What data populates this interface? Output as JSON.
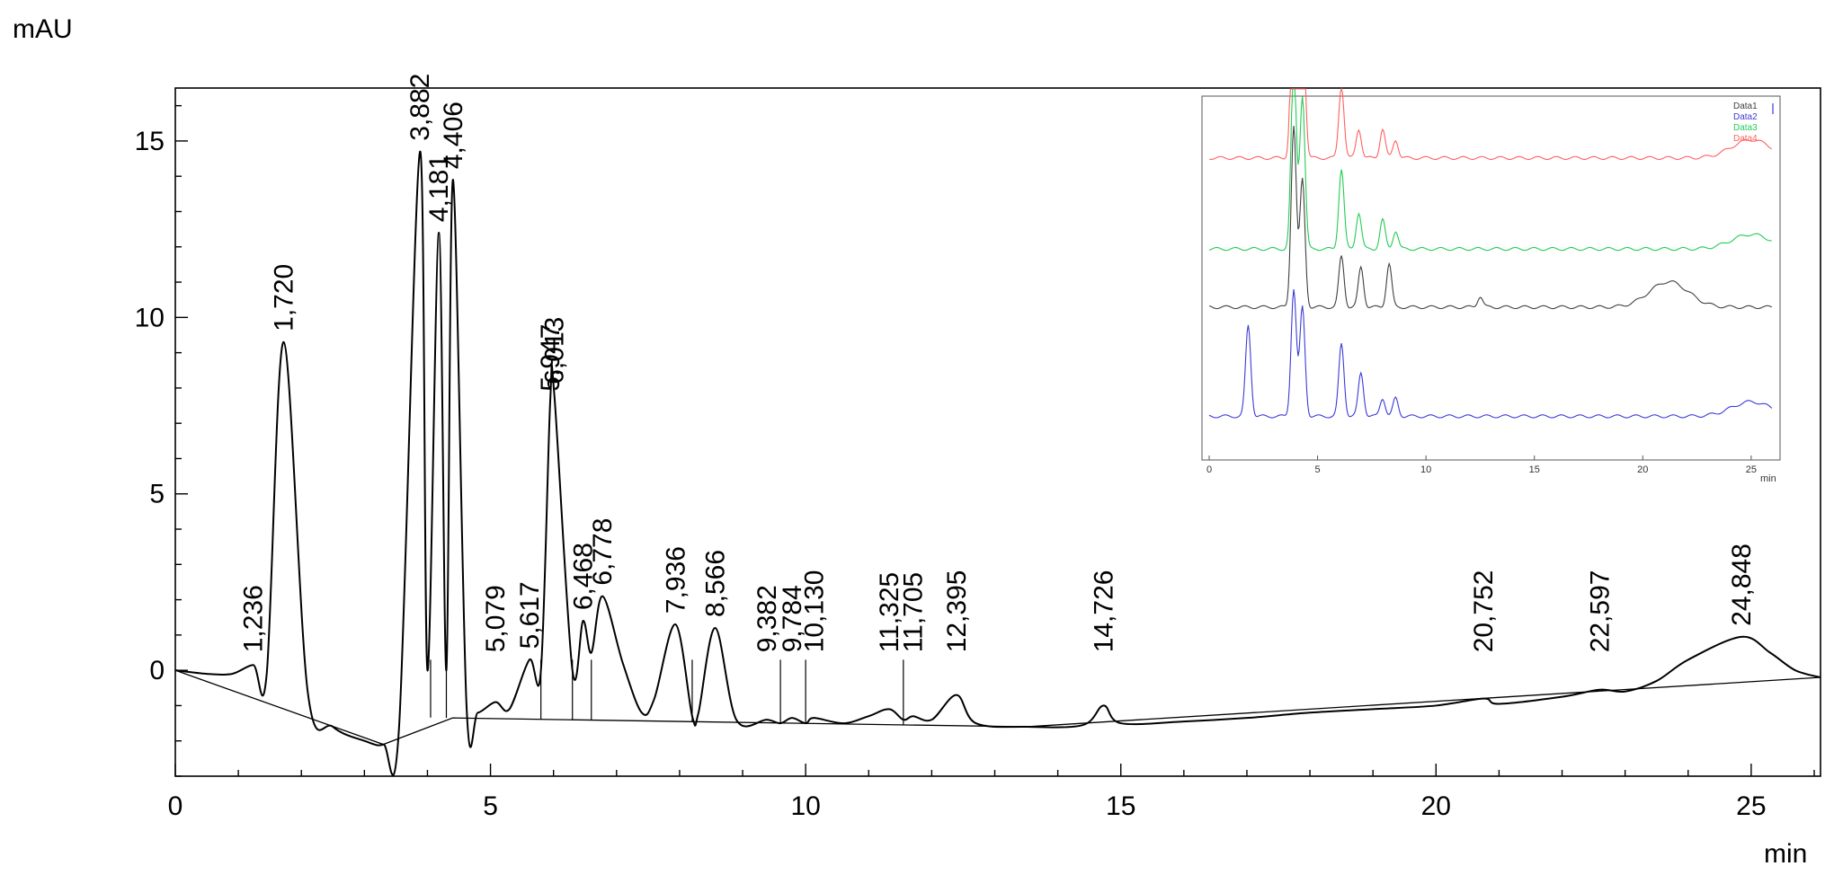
{
  "chart_data": {
    "type": "line",
    "y_unit": "mAU",
    "x_unit": "min",
    "xlim": [
      0,
      26.1
    ],
    "ylim": [
      -3.0,
      16.5
    ],
    "x_ticks": [
      0,
      5,
      10,
      15,
      20,
      25
    ],
    "y_ticks": [
      15,
      10,
      5,
      0
    ],
    "grid": false,
    "baseline_y": 0.0,
    "series": [
      {
        "values": [
          [
            0.0,
            0.0
          ],
          [
            0.5,
            -0.1
          ],
          [
            0.9,
            -0.1
          ],
          [
            1.236,
            0.15
          ],
          [
            1.45,
            -0.1
          ],
          [
            1.72,
            9.3
          ],
          [
            2.1,
            -0.6
          ],
          [
            2.5,
            -1.6
          ],
          [
            3.0,
            -2.0
          ],
          [
            3.3,
            -2.1
          ],
          [
            3.55,
            -1.6
          ],
          [
            3.882,
            14.7
          ],
          [
            4.0,
            0.0
          ],
          [
            4.181,
            12.4
          ],
          [
            4.3,
            0.0
          ],
          [
            4.406,
            13.9
          ],
          [
            4.62,
            -1.0
          ],
          [
            4.8,
            -1.2
          ],
          [
            5.079,
            -0.9
          ],
          [
            5.3,
            -1.1
          ],
          [
            5.617,
            0.3
          ],
          [
            5.8,
            0.0
          ],
          [
            5.947,
            7.6
          ],
          [
            6.013,
            7.8
          ],
          [
            6.3,
            0.0
          ],
          [
            6.468,
            1.4
          ],
          [
            6.6,
            0.5
          ],
          [
            6.778,
            2.1
          ],
          [
            7.1,
            0.2
          ],
          [
            7.4,
            -1.2
          ],
          [
            7.6,
            -0.8
          ],
          [
            7.936,
            1.3
          ],
          [
            8.2,
            -1.3
          ],
          [
            8.3,
            -1.2
          ],
          [
            8.566,
            1.2
          ],
          [
            8.9,
            -1.4
          ],
          [
            9.382,
            -1.4
          ],
          [
            9.6,
            -1.5
          ],
          [
            9.784,
            -1.35
          ],
          [
            10.0,
            -1.5
          ],
          [
            10.13,
            -1.35
          ],
          [
            10.6,
            -1.5
          ],
          [
            11.0,
            -1.3
          ],
          [
            11.325,
            -1.1
          ],
          [
            11.55,
            -1.4
          ],
          [
            11.705,
            -1.3
          ],
          [
            12.0,
            -1.4
          ],
          [
            12.395,
            -0.7
          ],
          [
            12.7,
            -1.5
          ],
          [
            13.5,
            -1.6
          ],
          [
            14.4,
            -1.55
          ],
          [
            14.726,
            -1.0
          ],
          [
            15.0,
            -1.5
          ],
          [
            16.0,
            -1.45
          ],
          [
            17.0,
            -1.35
          ],
          [
            18.0,
            -1.2
          ],
          [
            19.0,
            -1.1
          ],
          [
            20.0,
            -1.0
          ],
          [
            20.752,
            -0.8
          ],
          [
            21.0,
            -0.95
          ],
          [
            22.0,
            -0.75
          ],
          [
            22.597,
            -0.55
          ],
          [
            23.0,
            -0.6
          ],
          [
            23.5,
            -0.3
          ],
          [
            24.0,
            0.3
          ],
          [
            24.848,
            0.95
          ],
          [
            25.3,
            0.5
          ],
          [
            25.7,
            0.0
          ],
          [
            26.1,
            -0.2
          ]
        ],
        "color": "#000000"
      }
    ],
    "peak_labels": [
      {
        "x": 1.236,
        "label": "1,236"
      },
      {
        "x": 1.72,
        "label": "1,720"
      },
      {
        "x": 3.882,
        "label": "3,882"
      },
      {
        "x": 4.181,
        "label": "4,181"
      },
      {
        "x": 4.406,
        "label": "4,406"
      },
      {
        "x": 5.079,
        "label": "5,079"
      },
      {
        "x": 5.617,
        "label": "5,617"
      },
      {
        "x": 5.947,
        "label": "5,947"
      },
      {
        "x": 6.013,
        "label": "6,013"
      },
      {
        "x": 6.468,
        "label": "6,468"
      },
      {
        "x": 6.778,
        "label": "6,778"
      },
      {
        "x": 7.936,
        "label": "7,936"
      },
      {
        "x": 8.566,
        "label": "8,566"
      },
      {
        "x": 9.382,
        "label": "9,382"
      },
      {
        "x": 9.784,
        "label": "9,784"
      },
      {
        "x": 10.13,
        "label": "10,130"
      },
      {
        "x": 11.325,
        "label": "11,325"
      },
      {
        "x": 11.705,
        "label": "11,705"
      },
      {
        "x": 12.395,
        "label": "12,395"
      },
      {
        "x": 14.726,
        "label": "14,726"
      },
      {
        "x": 20.752,
        "label": "20,752"
      },
      {
        "x": 22.597,
        "label": "22,597"
      },
      {
        "x": 24.848,
        "label": "24,848"
      }
    ],
    "inset": {
      "type": "line",
      "xlim": [
        0,
        26
      ],
      "x_ticks": [
        0,
        5,
        10,
        15,
        20,
        25
      ],
      "x_unit": "min",
      "legend_position": "top-right",
      "series": [
        {
          "name": "Data1",
          "color": "#404040",
          "offset": 0.42,
          "peaks": [
            [
              3.9,
              0.5
            ],
            [
              4.3,
              0.35
            ],
            [
              6.1,
              0.14
            ],
            [
              7.0,
              0.11
            ],
            [
              8.3,
              0.12
            ],
            [
              12.5,
              0.03
            ],
            [
              21.2,
              0.07
            ]
          ]
        },
        {
          "name": "Data2",
          "color": "#3b3bd6",
          "offset": 0.12,
          "peaks": [
            [
              1.8,
              0.25
            ],
            [
              3.9,
              0.35
            ],
            [
              4.3,
              0.3
            ],
            [
              6.1,
              0.2
            ],
            [
              7.0,
              0.12
            ],
            [
              8.0,
              0.05
            ],
            [
              8.6,
              0.05
            ],
            [
              25.0,
              0.04
            ]
          ]
        },
        {
          "name": "Data3",
          "color": "#22cc55",
          "offset": 0.58,
          "peaks": [
            [
              3.9,
              0.52
            ],
            [
              4.3,
              0.42
            ],
            [
              6.1,
              0.22
            ],
            [
              6.9,
              0.1
            ],
            [
              8.0,
              0.08
            ],
            [
              8.6,
              0.05
            ],
            [
              25.0,
              0.04
            ]
          ]
        },
        {
          "name": "Data4",
          "color": "#ff6060",
          "offset": 0.83,
          "peaks": [
            [
              3.9,
              0.6
            ],
            [
              4.3,
              0.45
            ],
            [
              6.1,
              0.2
            ],
            [
              6.9,
              0.08
            ],
            [
              8.0,
              0.08
            ],
            [
              8.6,
              0.05
            ],
            [
              25.0,
              0.05
            ]
          ]
        }
      ]
    }
  }
}
